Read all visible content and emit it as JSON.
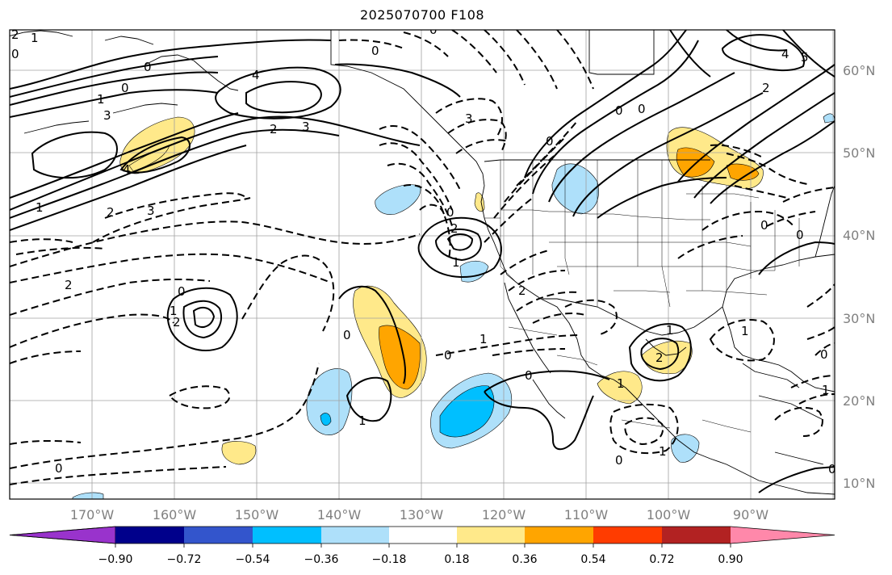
{
  "title": "2025070700 F108",
  "lat_labels": [
    {
      "text": "60°N",
      "value": 60
    },
    {
      "text": "50°N",
      "value": 50
    },
    {
      "text": "40°N",
      "value": 40
    },
    {
      "text": "30°N",
      "value": 30
    },
    {
      "text": "20°N",
      "value": 20
    },
    {
      "text": "10°N",
      "value": 10
    }
  ],
  "lon_labels": [
    {
      "text": "170°W",
      "value": -170
    },
    {
      "text": "160°W",
      "value": -160
    },
    {
      "text": "150°W",
      "value": -150
    },
    {
      "text": "140°W",
      "value": -140
    },
    {
      "text": "130°W",
      "value": -130
    },
    {
      "text": "120°W",
      "value": -120
    },
    {
      "text": "110°W",
      "value": -110
    },
    {
      "text": "100°W",
      "value": -100
    },
    {
      "text": "90°W",
      "value": -90
    }
  ],
  "colorbar": {
    "ticks": [
      "−0.90",
      "−0.72",
      "−0.54",
      "−0.36",
      "−0.18",
      "0.18",
      "0.36",
      "0.54",
      "0.72",
      "0.90"
    ],
    "colors": [
      "#9933cc",
      "#00008b",
      "#3355cc",
      "#00bfff",
      "#aee0fa",
      "#ffffff",
      "#ffe98a",
      "#ffa500",
      "#ff3c00",
      "#b22222",
      "#ff88aa"
    ]
  },
  "contour_labels": [
    "2",
    "1",
    "0",
    "0",
    "4",
    "0",
    "1",
    "3",
    "2",
    "3",
    "4",
    "3",
    "1",
    "2",
    "3",
    "0",
    "2",
    "1",
    "0",
    "2",
    "0",
    "1",
    "0",
    "2",
    "0",
    "1",
    "1",
    "2",
    "0",
    "0",
    "1",
    "0",
    "1",
    "2",
    "0",
    "0",
    "1",
    "0",
    "0",
    "0",
    "4",
    "5",
    "2",
    "0",
    "0",
    "1",
    "1",
    "0"
  ],
  "fill_colors": {
    "pos_light": "#ffe98a",
    "pos_mid": "#ffa500",
    "neg_light": "#aee0fa",
    "neg_mid": "#00bfff"
  }
}
